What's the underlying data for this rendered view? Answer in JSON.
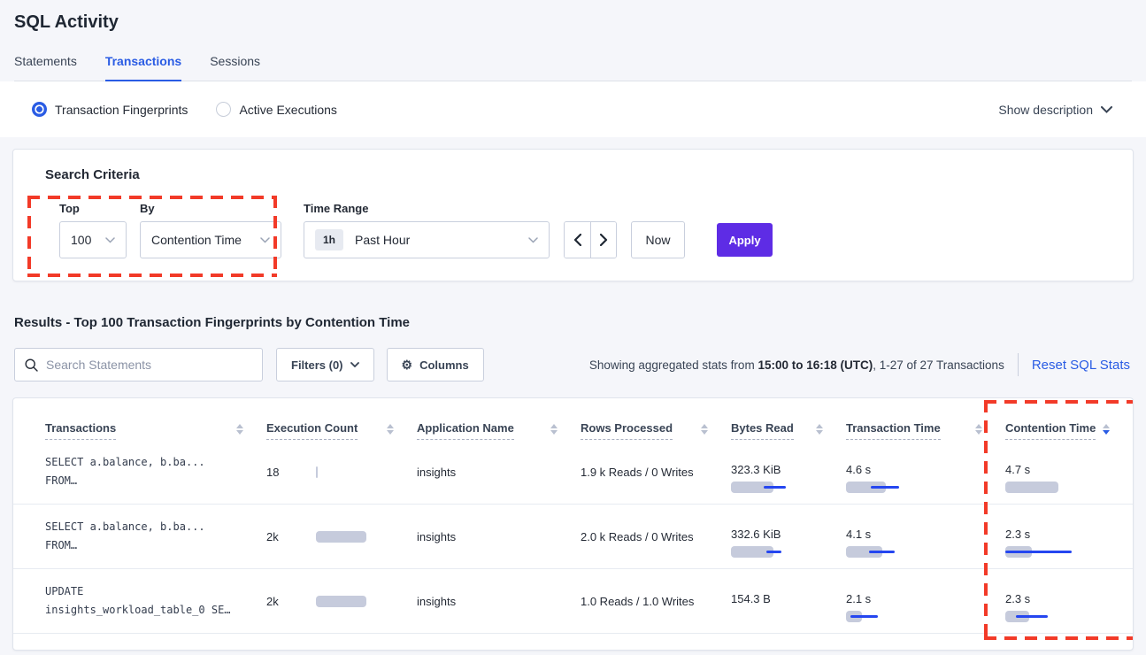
{
  "page": {
    "title": "SQL Activity"
  },
  "tabs": [
    {
      "label": "Statements"
    },
    {
      "label": "Transactions"
    },
    {
      "label": "Sessions"
    }
  ],
  "view_toggle": {
    "fingerprints_label": "Transaction Fingerprints",
    "active_exec_label": "Active Executions",
    "selected": "Transaction Fingerprints",
    "show_description_label": "Show description"
  },
  "search_criteria": {
    "heading": "Search Criteria",
    "top": {
      "label": "Top",
      "value": "100"
    },
    "by": {
      "label": "By",
      "value": "Contention Time"
    },
    "time_range": {
      "label": "Time Range",
      "badge": "1h",
      "value": "Past Hour"
    },
    "now_label": "Now",
    "apply_label": "Apply"
  },
  "results": {
    "heading": "Results - Top 100 Transaction Fingerprints by Contention Time",
    "search_placeholder": "Search Statements",
    "filters_label": "Filters (0)",
    "columns_label": "Columns",
    "stats_prefix": "Showing aggregated stats from ",
    "stats_bold": "15:00 to 16:18 (UTC)",
    "stats_suffix": ", 1-27 of 27 Transactions",
    "reset_label": "Reset SQL Stats"
  },
  "table": {
    "columns": [
      {
        "label": "Transactions",
        "sorted": false
      },
      {
        "label": "Execution Count",
        "sorted": false
      },
      {
        "label": "Application Name",
        "sorted": false
      },
      {
        "label": "Rows Processed",
        "sorted": false
      },
      {
        "label": "Bytes Read",
        "sorted": false
      },
      {
        "label": "Transaction Time",
        "sorted": false
      },
      {
        "label": "Contention Time",
        "sorted": true,
        "sort_direction": "desc"
      }
    ],
    "rows": [
      {
        "query_line1": "SELECT a.balance, b.ba...",
        "query_line2": "FROM…",
        "exec": {
          "label": "18",
          "bar": 2,
          "line": null
        },
        "app": "insights",
        "rows_processed": "1.9 k Reads / 0 Writes",
        "bytes": {
          "label": "323.3 KiB",
          "bar": 48,
          "line": [
            37,
            62
          ]
        },
        "txn_time": {
          "label": "4.6 s",
          "bar": 45,
          "line": [
            28,
            60
          ]
        },
        "contention": {
          "label": "4.7 s",
          "bar": 60,
          "line": null
        }
      },
      {
        "query_line1": "SELECT a.balance, b.ba...",
        "query_line2": "FROM…",
        "exec": {
          "label": "2k",
          "bar": 57,
          "line": null
        },
        "app": "insights",
        "rows_processed": "2.0 k Reads / 0 Writes",
        "bytes": {
          "label": "332.6 KiB",
          "bar": 48,
          "line": [
            40,
            57
          ]
        },
        "txn_time": {
          "label": "4.1 s",
          "bar": 41,
          "line": [
            26,
            55
          ]
        },
        "contention": {
          "label": "2.3 s",
          "bar": 30,
          "line": [
            0,
            75
          ]
        }
      },
      {
        "query_line1": "UPDATE",
        "query_line2": "insights_workload_table_0 SE…",
        "exec": {
          "label": "2k",
          "bar": 57,
          "line": null
        },
        "app": "insights",
        "rows_processed": "1.0 Reads / 1.0 Writes",
        "bytes": {
          "label": "154.3 B",
          "bar": 0,
          "line": null
        },
        "txn_time": {
          "label": "2.1 s",
          "bar": 18,
          "line": [
            5,
            36
          ]
        },
        "contention": {
          "label": "2.3 s",
          "bar": 27,
          "line": [
            12,
            48
          ]
        }
      }
    ]
  },
  "theme": {
    "accent_blue": "#2a5ce4",
    "bar_line_blue": "#2546f0",
    "bar_fill_gray": "#c6cbdc",
    "apply_purple": "#5e2ce5",
    "highlight_red": "#f23a28"
  }
}
